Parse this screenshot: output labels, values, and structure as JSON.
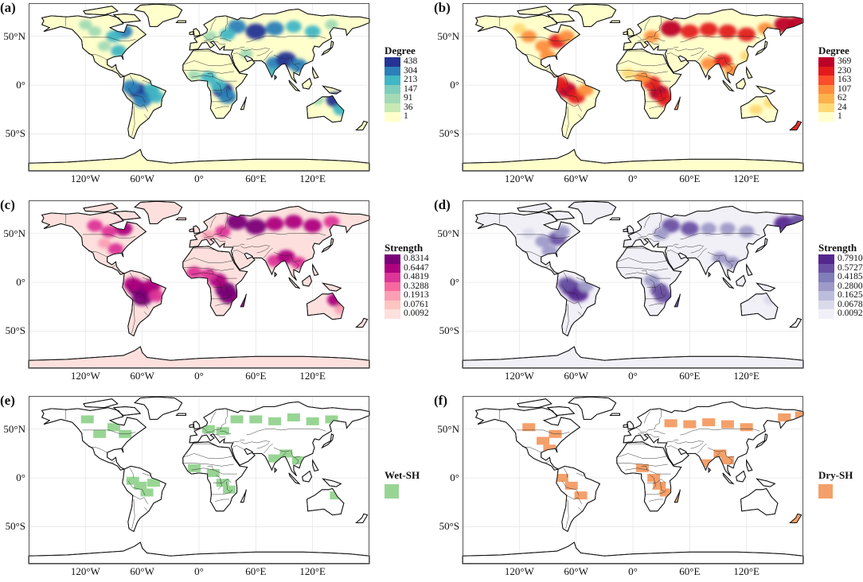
{
  "panels": [
    {
      "id": "a",
      "label": "(a)",
      "legend": {
        "type": "gradient",
        "title": "Degree",
        "ticks": [
          "438",
          "304",
          "213",
          "147",
          "91",
          "36",
          "1"
        ],
        "colors": [
          "#253494",
          "#2c7fb8",
          "#41b6c4",
          "#7fcdbb",
          "#a1dab4",
          "#c7e9b4",
          "#ffffcc"
        ]
      },
      "hotspot_colors": [
        "#253494",
        "#2c7fb8",
        "#41b6c4",
        "#a1dab4"
      ]
    },
    {
      "id": "b",
      "label": "(b)",
      "legend": {
        "type": "gradient",
        "title": "Degree",
        "ticks": [
          "369",
          "230",
          "163",
          "107",
          "62",
          "24",
          "1"
        ],
        "colors": [
          "#bd0026",
          "#e31a1c",
          "#fc4e2a",
          "#fd8d3c",
          "#feb24c",
          "#fed976",
          "#ffffcc"
        ]
      },
      "hotspot_colors": [
        "#bd0026",
        "#e31a1c",
        "#fd8d3c",
        "#fed976"
      ]
    },
    {
      "id": "c",
      "label": "(c)",
      "legend": {
        "type": "gradient",
        "title": "Strength",
        "ticks": [
          "0.8314",
          "0.6447",
          "0.4819",
          "0.3288",
          "0.1913",
          "0.0761",
          "0.0092"
        ],
        "colors": [
          "#7a0177",
          "#ae017e",
          "#dd3497",
          "#f768a1",
          "#fa9fb5",
          "#fcc5c0",
          "#fde0dd"
        ]
      },
      "hotspot_colors": [
        "#7a0177",
        "#ae017e",
        "#dd3497",
        "#fa9fb5"
      ]
    },
    {
      "id": "d",
      "label": "(d)",
      "legend": {
        "type": "gradient",
        "title": "Strength",
        "ticks": [
          "0.7910",
          "0.5727",
          "0.4185",
          "0.2800",
          "0.1625",
          "0.0678",
          "0.0092"
        ],
        "colors": [
          "#54278f",
          "#6a51a3",
          "#807dba",
          "#9e9ac8",
          "#bcbddc",
          "#dadaeb",
          "#f2f0f7"
        ]
      },
      "hotspot_colors": [
        "#54278f",
        "#6a51a3",
        "#9e9ac8",
        "#dadaeb"
      ]
    },
    {
      "id": "e",
      "label": "(e)",
      "legend": {
        "type": "category",
        "title": "Wet-SH",
        "color": "#98d594"
      },
      "hotspot_colors": [
        "#98d594"
      ]
    },
    {
      "id": "f",
      "label": "(f)",
      "legend": {
        "type": "category",
        "title": "Dry-SH",
        "color": "#f4a06a"
      },
      "hotspot_colors": [
        "#f4a06a"
      ]
    }
  ],
  "axes": {
    "y_ticks": [
      {
        "label": "50°N",
        "lat": 50
      },
      {
        "label": "0°",
        "lat": 0
      },
      {
        "label": "50°S",
        "lat": -50
      }
    ],
    "x_ticks": [
      {
        "label": "120°W",
        "lon": -120
      },
      {
        "label": "60°W",
        "lon": -60
      },
      {
        "label": "0°",
        "lon": 0
      },
      {
        "label": "60°E",
        "lon": 60
      },
      {
        "label": "120°E",
        "lon": 120
      }
    ]
  }
}
